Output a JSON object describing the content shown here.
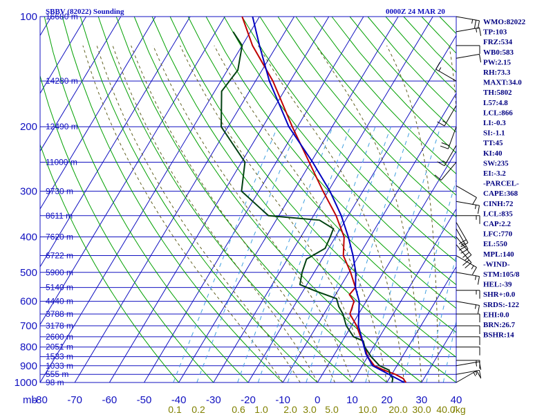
{
  "header": {
    "station": "SBBV (82022) Sounding",
    "datetime": "0000Z 24 MAR 20"
  },
  "colors": {
    "frame": "#1010c0",
    "isobar": "#1010c0",
    "isotherm": "#1010c0",
    "dry_adiabat": "#00a000",
    "moist_adiabat": "#606020",
    "mixing_ratio": "#40a0e0",
    "temperature": "#c00000",
    "dewpoint": "#004010",
    "parcel": "#0000c0",
    "wind_barb": "#000000"
  },
  "chart_data": {
    "type": "line",
    "title": "SBBV (82022) Sounding",
    "subtitle": "0000Z 24 MAR 20",
    "xlabel": "",
    "ylabel": "mb",
    "xlim": [
      -80,
      40
    ],
    "ylim": [
      1000,
      100
    ],
    "y_scale": "log",
    "grid": true,
    "pressure_ticks": [
      100,
      200,
      300,
      400,
      500,
      600,
      700,
      800,
      900,
      1000
    ],
    "pressure_labels": [
      "100",
      "200",
      "300",
      "400",
      "500",
      "600",
      "700",
      "800",
      "900",
      "1000"
    ],
    "pressure_axis_unit": "mb",
    "temperature_ticks": [
      "-80",
      "-70",
      "-60",
      "-50",
      "-40",
      "-30",
      "-20",
      "-10",
      "0",
      "10",
      "20",
      "30",
      "40"
    ],
    "mixing_ratio_labels": [
      "0.1",
      "0.2",
      "0.6",
      "1.0",
      "2.0",
      "3.0",
      "5.0",
      "10.0",
      "20.0",
      "30.0",
      "40.0"
    ],
    "mixing_ratio_unit": "g/kg",
    "height_levels": [
      {
        "p": 100,
        "label": "16680 m"
      },
      {
        "p": 150,
        "label": "14280 m"
      },
      {
        "p": 200,
        "label": "12490 m"
      },
      {
        "p": 250,
        "label": "11000 m"
      },
      {
        "p": 300,
        "label": "9730 m"
      },
      {
        "p": 350,
        "label": "8611 m"
      },
      {
        "p": 400,
        "label": "7620 m"
      },
      {
        "p": 450,
        "label": "6722 m"
      },
      {
        "p": 500,
        "label": "5900 m"
      },
      {
        "p": 550,
        "label": "5140 m"
      },
      {
        "p": 600,
        "label": "4440 m"
      },
      {
        "p": 650,
        "label": "3788 m"
      },
      {
        "p": 700,
        "label": "3178 m"
      },
      {
        "p": 750,
        "label": "2600 m"
      },
      {
        "p": 800,
        "label": "2051 m"
      },
      {
        "p": 850,
        "label": "1533 m"
      },
      {
        "p": 900,
        "label": "1033 m"
      },
      {
        "p": 950,
        "label": "555 m"
      },
      {
        "p": 1000,
        "label": "98 m"
      }
    ],
    "series": [
      {
        "key": "temperature",
        "points": [
          [
            1000,
            25.5
          ],
          [
            975,
            24.0
          ],
          [
            950,
            21.0
          ],
          [
            925,
            17.0
          ],
          [
            900,
            13.5
          ],
          [
            850,
            10.0
          ],
          [
            800,
            7.5
          ],
          [
            750,
            4.5
          ],
          [
            700,
            1.5
          ],
          [
            650,
            -2.5
          ],
          [
            600,
            -3.5
          ],
          [
            575,
            -6.0
          ],
          [
            550,
            -5.5
          ],
          [
            500,
            -9.5
          ],
          [
            450,
            -14.5
          ],
          [
            400,
            -17.5
          ],
          [
            350,
            -23.5
          ],
          [
            300,
            -31.5
          ],
          [
            250,
            -40.5
          ],
          [
            200,
            -51.5
          ],
          [
            150,
            -65.0
          ],
          [
            120,
            -77.0
          ],
          [
            100,
            -85.0
          ]
        ]
      },
      {
        "key": "dewpoint",
        "points": [
          [
            1000,
            21.5
          ],
          [
            975,
            21.0
          ],
          [
            950,
            19.5
          ],
          [
            925,
            18.5
          ],
          [
            900,
            15.0
          ],
          [
            850,
            11.0
          ],
          [
            800,
            7.5
          ],
          [
            770,
            6.0
          ],
          [
            750,
            2.5
          ],
          [
            700,
            -1.5
          ],
          [
            650,
            -4.5
          ],
          [
            620,
            -7.0
          ],
          [
            590,
            -9.0
          ],
          [
            560,
            -17.0
          ],
          [
            540,
            -22.0
          ],
          [
            500,
            -23.5
          ],
          [
            460,
            -24.5
          ],
          [
            430,
            -21.0
          ],
          [
            400,
            -21.5
          ],
          [
            380,
            -22.0
          ],
          [
            360,
            -27.5
          ],
          [
            350,
            -43.0
          ],
          [
            300,
            -55.0
          ],
          [
            250,
            -59.0
          ],
          [
            200,
            -72.0
          ],
          [
            160,
            -78.0
          ],
          [
            140,
            -77.0
          ],
          [
            120,
            -80.0
          ],
          [
            110,
            -85.0
          ]
        ]
      },
      {
        "key": "parcel",
        "points": [
          [
            1000,
            25.0
          ],
          [
            900,
            13.0
          ],
          [
            835,
            9.0
          ],
          [
            770,
            5.8
          ],
          [
            700,
            2.0
          ],
          [
            600,
            -2.0
          ],
          [
            550,
            -5.5
          ],
          [
            500,
            -8.0
          ],
          [
            450,
            -11.7
          ],
          [
            400,
            -16.3
          ],
          [
            350,
            -22.0
          ],
          [
            300,
            -29.5
          ],
          [
            250,
            -39.5
          ],
          [
            200,
            -52.5
          ],
          [
            150,
            -66.0
          ],
          [
            120,
            -75.0
          ],
          [
            100,
            -82.0
          ]
        ]
      }
    ],
    "wind_barbs": [
      {
        "p": 100,
        "dir": 100,
        "spd": 25
      },
      {
        "p": 110,
        "dir": 80,
        "spd": 15
      },
      {
        "p": 120,
        "dir": 90,
        "spd": 10
      },
      {
        "p": 130,
        "dir": 80,
        "spd": 10
      },
      {
        "p": 150,
        "dir": 300,
        "spd": 15
      },
      {
        "p": 175,
        "dir": 210,
        "spd": 15
      },
      {
        "p": 200,
        "dir": 200,
        "spd": 20
      },
      {
        "p": 225,
        "dir": 210,
        "spd": 15
      },
      {
        "p": 250,
        "dir": 220,
        "spd": 10
      },
      {
        "p": 290,
        "dir": 120,
        "spd": 10
      },
      {
        "p": 320,
        "dir": 100,
        "spd": 15
      },
      {
        "p": 350,
        "dir": 90,
        "spd": 15
      },
      {
        "p": 365,
        "dir": 150,
        "spd": 20
      },
      {
        "p": 380,
        "dir": 150,
        "spd": 25
      },
      {
        "p": 400,
        "dir": 140,
        "spd": 20
      },
      {
        "p": 420,
        "dir": 140,
        "spd": 20
      },
      {
        "p": 450,
        "dir": 120,
        "spd": 15
      },
      {
        "p": 500,
        "dir": 100,
        "spd": 15
      },
      {
        "p": 560,
        "dir": 90,
        "spd": 15
      },
      {
        "p": 600,
        "dir": 100,
        "spd": 15
      },
      {
        "p": 650,
        "dir": 90,
        "spd": 10
      },
      {
        "p": 700,
        "dir": 90,
        "spd": 10
      },
      {
        "p": 750,
        "dir": 90,
        "spd": 10
      },
      {
        "p": 800,
        "dir": 90,
        "spd": 10
      },
      {
        "p": 870,
        "dir": 90,
        "spd": 15
      },
      {
        "p": 900,
        "dir": 80,
        "spd": 15
      },
      {
        "p": 950,
        "dir": 80,
        "spd": 15
      },
      {
        "p": 1000,
        "dir": 60,
        "spd": 15
      }
    ]
  },
  "indices": [
    "WMO:82022",
    "TP:103",
    "FRZ:534",
    "WB0:583",
    "PW:2.15",
    "RH:73.3",
    "MAXT:34.0",
    "TH:5802",
    "L57:4.8",
    "LCL:866",
    "LI:-0.3",
    "SI:-1.1",
    "TT:45",
    "KI:40",
    "SW:235",
    "EI:-3.2",
    "-PARCEL-",
    "CAPE:368",
    "CINH:72",
    "LCL:835",
    "CAP:2.2",
    "LFC:770",
    "EL:550",
    "MPL:140",
    "-WIND-",
    "STM:105/8",
    "HEL:-39",
    "SHR+:0.0",
    "SRDS:-122",
    "EHI:0.0",
    "BRN:26.7",
    "BSHR:14"
  ]
}
